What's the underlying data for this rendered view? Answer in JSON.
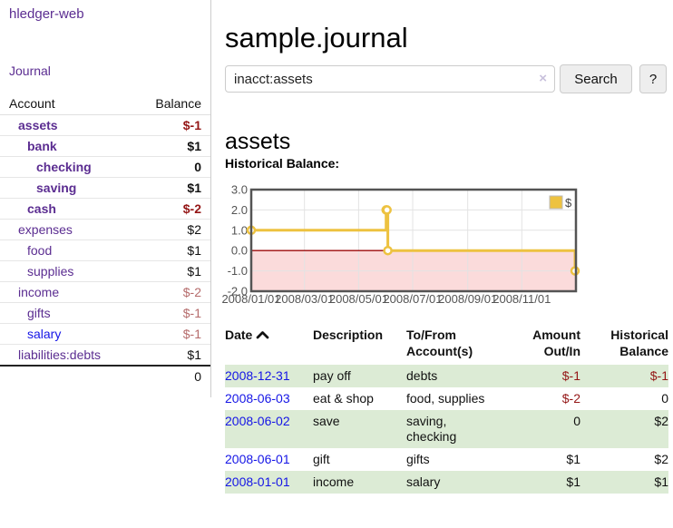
{
  "app": {
    "brand": "hledger-web",
    "nav": {
      "journal": "Journal"
    }
  },
  "sidebar": {
    "headers": {
      "account": "Account",
      "balance": "Balance"
    },
    "rows": [
      {
        "label": "assets",
        "indent": 1,
        "bold": true,
        "link": "visited",
        "balance": "$-1",
        "balance_class": "neg"
      },
      {
        "label": "bank",
        "indent": 2,
        "bold": true,
        "link": "visited",
        "balance": "$1",
        "balance_class": ""
      },
      {
        "label": "checking",
        "indent": 3,
        "bold": true,
        "link": "visited",
        "balance": "0",
        "balance_class": ""
      },
      {
        "label": "saving",
        "indent": 3,
        "bold": true,
        "link": "visited",
        "balance": "$1",
        "balance_class": ""
      },
      {
        "label": "cash",
        "indent": 2,
        "bold": true,
        "link": "visited",
        "balance": "$-2",
        "balance_class": "neg"
      },
      {
        "label": "expenses",
        "indent": 1,
        "bold": false,
        "link": "visited",
        "balance": "$2",
        "balance_class": ""
      },
      {
        "label": "food",
        "indent": 2,
        "bold": false,
        "link": "visited",
        "balance": "$1",
        "balance_class": ""
      },
      {
        "label": "supplies",
        "indent": 2,
        "bold": false,
        "link": "visited",
        "balance": "$1",
        "balance_class": ""
      },
      {
        "label": "income",
        "indent": 1,
        "bold": false,
        "link": "visited",
        "balance": "$-2",
        "balance_class": "negsoft"
      },
      {
        "label": "gifts",
        "indent": 2,
        "bold": false,
        "link": "visited",
        "balance": "$-1",
        "balance_class": "negsoft"
      },
      {
        "label": "salary",
        "indent": 2,
        "bold": false,
        "link": "unvisited",
        "balance": "$-1",
        "balance_class": "negsoft"
      },
      {
        "label": "liabilities:debts",
        "indent": 1,
        "bold": false,
        "link": "visited",
        "balance": "$1",
        "balance_class": ""
      }
    ],
    "total": "0"
  },
  "main": {
    "title": "sample.journal",
    "search": {
      "value": "inacct:assets",
      "clear_label": "×",
      "button_label": "Search",
      "help_label": "?"
    },
    "account_heading": "assets"
  },
  "chart_data": {
    "type": "line",
    "step": true,
    "title": "Historical Balance:",
    "series": [
      {
        "name": "$",
        "color": "#edc240",
        "points": [
          [
            "2008-01-01",
            1
          ],
          [
            "2008-06-01",
            2
          ],
          [
            "2008-06-02",
            2
          ],
          [
            "2008-06-03",
            0
          ],
          [
            "2008-12-31",
            -1
          ]
        ]
      }
    ],
    "x_ticks": [
      "2008/01/01",
      "2008/03/01",
      "2008/05/01",
      "2008/07/01",
      "2008/09/01",
      "2008/11/01"
    ],
    "x_range": [
      "2008-01-01",
      "2009-01-01"
    ],
    "y_ticks": [
      3,
      2,
      1,
      0,
      -1,
      -2
    ],
    "ylim": [
      -2,
      3
    ],
    "grid": true,
    "legend": {
      "label": "$",
      "position": "top-right"
    },
    "negative_fill": "#fbdbdb",
    "zero_line_color": "#9c0a0a",
    "tick_color": "#545454",
    "border_color": "#545454"
  },
  "register": {
    "headers": [
      "Date",
      "Description",
      "To/From Account(s)",
      "Amount Out/In",
      "Historical Balance"
    ],
    "rows": [
      {
        "date": "2008-12-31",
        "description": "pay off",
        "accounts": "debts",
        "amount": "$-1",
        "amount_neg": true,
        "balance": "$-1",
        "balance_neg": true
      },
      {
        "date": "2008-06-03",
        "description": "eat & shop",
        "accounts": "food, supplies",
        "amount": "$-2",
        "amount_neg": true,
        "balance": "0",
        "balance_neg": false
      },
      {
        "date": "2008-06-02",
        "description": "save",
        "accounts": "saving, checking",
        "amount": "0",
        "amount_neg": false,
        "balance": "$2",
        "balance_neg": false
      },
      {
        "date": "2008-06-01",
        "description": "gift",
        "accounts": "gifts",
        "amount": "$1",
        "amount_neg": false,
        "balance": "$2",
        "balance_neg": false
      },
      {
        "date": "2008-01-01",
        "description": "income",
        "accounts": "salary",
        "amount": "$1",
        "amount_neg": false,
        "balance": "$1",
        "balance_neg": false
      }
    ]
  }
}
